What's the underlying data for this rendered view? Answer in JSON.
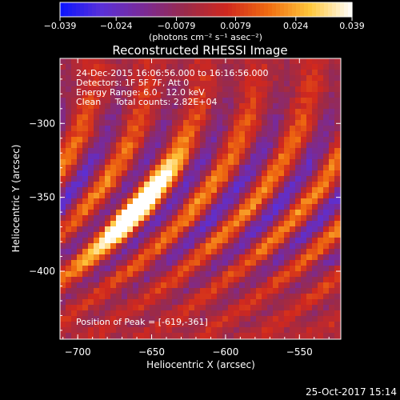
{
  "chart_data": {
    "type": "heatmap",
    "title": "Reconstructed RHESSI Image",
    "xlabel": "Heliocentric X (arcsec)",
    "ylabel": "Heliocentric Y (arcsec)",
    "xlim": [
      -712,
      -522
    ],
    "ylim": [
      -446,
      -256
    ],
    "xticks": [
      -700,
      -650,
      -600,
      -550
    ],
    "xtick_labels": [
      "−700",
      "−650",
      "−600",
      "−550"
    ],
    "yticks": [
      -300,
      -350,
      -400
    ],
    "ytick_labels": [
      "−300",
      "−350",
      "−400"
    ],
    "colorbar": {
      "range": [
        -0.039,
        0.039
      ],
      "ticks": [
        -0.039,
        -0.024,
        -0.0079,
        0.0079,
        0.024,
        0.039
      ],
      "tick_labels": [
        "−0.039",
        "−0.024",
        "−0.0079",
        "0.0079",
        "0.024",
        "0.039"
      ],
      "units_label": "(photons cm⁻² s⁻¹ asec⁻²)",
      "colors": [
        "#0a14ff",
        "#5a30d8",
        "#7a2a96",
        "#9a2a4a",
        "#d0281e",
        "#f06c10",
        "#ffc83c",
        "#ffffff"
      ]
    },
    "annotations": [
      "24-Dec-2015 16:06:56.000 to 16:16:56.000",
      "Detectors: 1F 5F 7F, Att 0",
      "Energy Range: 6.0 - 12.0 keV",
      "Clean     Total counts: 2.82E+04"
    ],
    "peak_label": "Position of Peak = [-619,-361]",
    "peak": [
      -619,
      -361
    ],
    "grid": false
  },
  "footer": {
    "date": "25-Oct-2017 15:14"
  }
}
